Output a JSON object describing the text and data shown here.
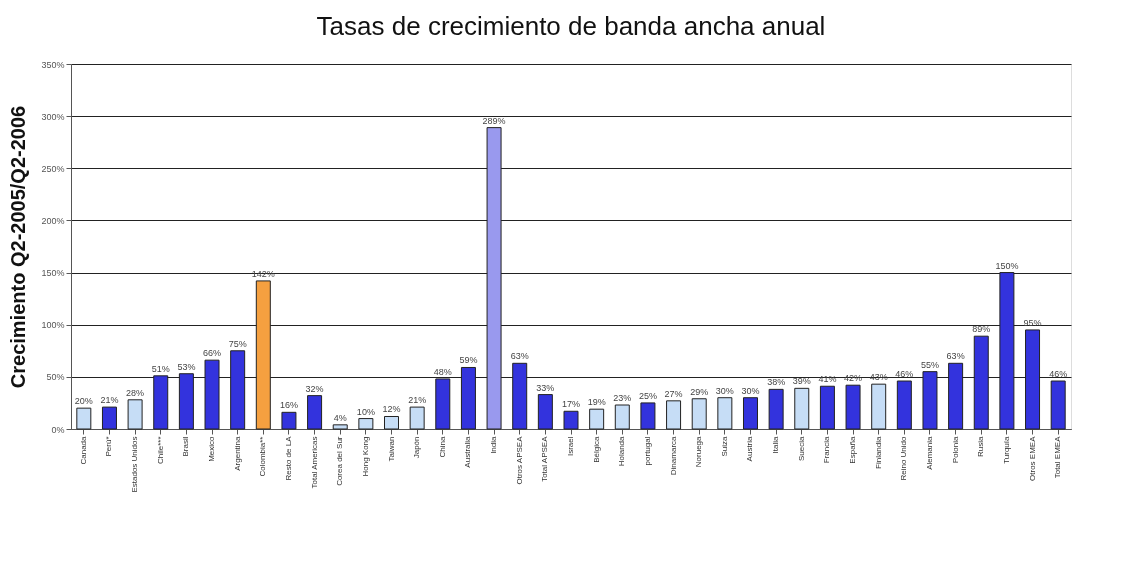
{
  "chart_data": {
    "type": "bar",
    "title": "Tasas de crecimiento de banda ancha anual",
    "ylabel": "Crecimiento Q2-2005/Q2-2006",
    "categories": [
      "Canada",
      "Perú*",
      "Estados Unidos",
      "Chile***",
      "Brasil",
      "Mexico",
      "Argentina",
      "Colombia**",
      "Resto de LA",
      "Total Americas",
      "Corea del Sur",
      "Hong Kong",
      "Taiwan",
      "Japón",
      "China",
      "Australia",
      "India",
      "Otros APSEA",
      "Total APSEA",
      "Israel",
      "Bélgica",
      "Holanda",
      "portugal",
      "Dinamarca",
      "Noruega",
      "Suiza",
      "Austria",
      "Italia",
      "Suecia",
      "Francia",
      "España",
      "Finlandia",
      "Reino Unido",
      "Alemania",
      "Polonia",
      "Rusia",
      "Turquía",
      "Otros EMEA",
      "Total EMEA"
    ],
    "values": [
      20,
      21,
      28,
      51,
      53,
      66,
      75,
      142,
      16,
      32,
      4,
      10,
      12,
      21,
      48,
      59,
      289,
      63,
      33,
      17,
      19,
      23,
      25,
      27,
      29,
      30,
      30,
      38,
      39,
      41,
      42,
      43,
      46,
      55,
      63,
      89,
      150,
      95,
      46
    ],
    "value_labels": [
      "20%",
      "21%",
      "28%",
      "51%",
      "53%",
      "66%",
      "75%",
      "142%",
      "16%",
      "32%",
      "4%",
      "10%",
      "12%",
      "21%",
      "48%",
      "59%",
      "289%",
      "63%",
      "33%",
      "17%",
      "19%",
      "23%",
      "25%",
      "27%",
      "29%",
      "30%",
      "30%",
      "38%",
      "39%",
      "41%",
      "42%",
      "43%",
      "46%",
      "55%",
      "63%",
      "89%",
      "150%",
      "95%",
      "46%"
    ],
    "colors": [
      "#c6ddf6",
      "#3333dd",
      "#c6ddf6",
      "#3333dd",
      "#3333dd",
      "#3333dd",
      "#3333dd",
      "#f5a040",
      "#3333dd",
      "#3333dd",
      "#c6ddf6",
      "#c6ddf6",
      "#c6ddf6",
      "#c6ddf6",
      "#3333dd",
      "#3333dd",
      "#9999ee",
      "#3333dd",
      "#3333dd",
      "#3333dd",
      "#c6ddf6",
      "#c6ddf6",
      "#3333dd",
      "#c6ddf6",
      "#c6ddf6",
      "#c6ddf6",
      "#3333dd",
      "#3333dd",
      "#c6ddf6",
      "#3333dd",
      "#3333dd",
      "#c6ddf6",
      "#3333dd",
      "#3333dd",
      "#3333dd",
      "#3333dd",
      "#3333dd",
      "#3333dd",
      "#3333dd"
    ],
    "ylim": [
      0,
      350
    ],
    "yticks": [
      {
        "value": 0,
        "label": "0%"
      },
      {
        "value": 50,
        "label": "50%"
      },
      {
        "value": 100,
        "label": "100%"
      },
      {
        "value": 150,
        "label": "150%"
      },
      {
        "value": 200,
        "label": "200%"
      },
      {
        "value": 250,
        "label": "250%"
      },
      {
        "value": 300,
        "label": "300%"
      },
      {
        "value": 350,
        "label": "350%"
      }
    ],
    "grid": "y"
  }
}
